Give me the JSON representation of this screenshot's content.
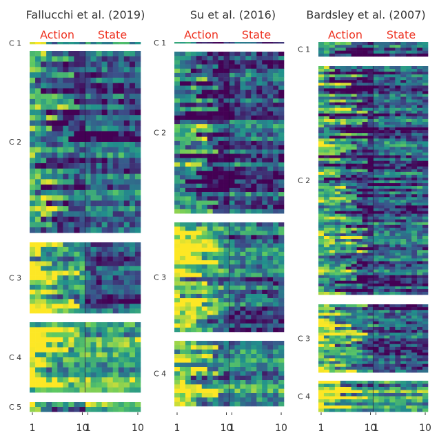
{
  "figure": {
    "colormap": [
      "#440154",
      "#3b528b",
      "#21918c",
      "#5ec962",
      "#fde725"
    ],
    "action_label_color": "#ee3322"
  },
  "chart_data": [
    {
      "type": "heatmap",
      "title": "Fallucchi et al. (2019)",
      "column_groups": [
        "Action",
        "State"
      ],
      "x_ticks": [
        "1",
        "10",
        "1",
        "10"
      ],
      "columns_per_group": 10,
      "clusters": [
        {
          "label": "C 1",
          "rows": 1,
          "action_level": 0.55,
          "state_level": 0.45
        },
        {
          "label": "C 2",
          "rows": 34,
          "action_level": 0.4,
          "state_level": 0.3
        },
        {
          "label": "C 3",
          "rows": 15,
          "action_level": 0.75,
          "state_level": 0.22
        },
        {
          "label": "C 4",
          "rows": 14,
          "action_level": 0.82,
          "state_level": 0.58
        },
        {
          "label": "C 5",
          "rows": 2,
          "action_level": 0.6,
          "state_level": 0.62
        }
      ]
    },
    {
      "type": "heatmap",
      "title": "Su et al. (2016)",
      "column_groups": [
        "Action",
        "State"
      ],
      "x_ticks": [
        "1",
        "10",
        "1",
        "10"
      ],
      "columns_per_group": 10,
      "clusters": [
        {
          "label": "C 1",
          "rows": 1,
          "action_level": 0.3,
          "state_level": 0.25
        },
        {
          "label": "C 2",
          "rows": 38,
          "action_level": 0.35,
          "state_level": 0.3
        },
        {
          "label": "C 3",
          "rows": 26,
          "action_level": 0.7,
          "state_level": 0.3
        },
        {
          "label": "C 4",
          "rows": 15,
          "action_level": 0.72,
          "state_level": 0.5
        }
      ]
    },
    {
      "type": "heatmap",
      "title": "Bardsley et al. (2007)",
      "column_groups": [
        "Action",
        "State"
      ],
      "x_ticks": [
        "1",
        "10",
        "1",
        "10"
      ],
      "columns_per_group": 10,
      "clusters": [
        {
          "label": "C 1",
          "rows": 5,
          "action_level": 0.3,
          "state_level": 0.3
        },
        {
          "label": "C 2",
          "rows": 82,
          "action_level": 0.38,
          "state_level": 0.28
        },
        {
          "label": "C 3",
          "rows": 24,
          "action_level": 0.65,
          "state_level": 0.3
        },
        {
          "label": "C 4",
          "rows": 10,
          "action_level": 0.72,
          "state_level": 0.55
        }
      ]
    }
  ]
}
